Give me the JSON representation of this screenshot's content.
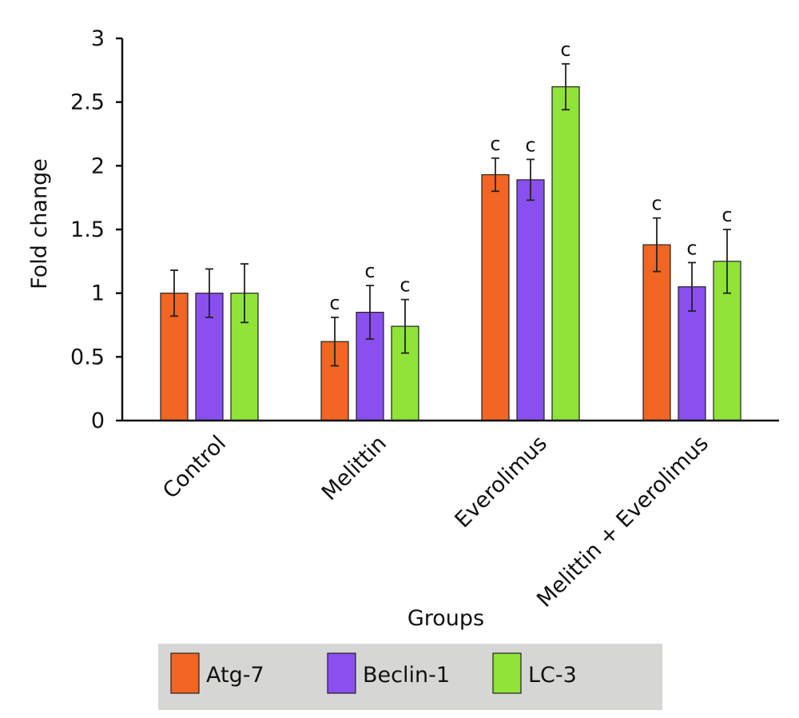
{
  "chart_data": {
    "type": "bar",
    "xlabel": "Groups",
    "ylabel": "Fold change",
    "ylim": [
      0,
      3
    ],
    "yticks": [
      "0",
      "0.5",
      "1",
      "1.5",
      "2",
      "2.5",
      "3"
    ],
    "grid": false,
    "legend_position": "bottom",
    "categories": [
      "Control",
      "Melittin",
      "Everolimus",
      "Melittin + Everolimus"
    ],
    "series": [
      {
        "name": "Atg-7",
        "color": "#F26522",
        "values": [
          1.0,
          0.62,
          1.93,
          1.38
        ],
        "errors": [
          0.18,
          0.19,
          0.13,
          0.21
        ],
        "annotations": [
          "",
          "c",
          "c",
          "c"
        ]
      },
      {
        "name": "Beclin-1",
        "color": "#8A4FEF",
        "values": [
          1.0,
          0.85,
          1.89,
          1.05
        ],
        "errors": [
          0.19,
          0.21,
          0.16,
          0.19
        ],
        "annotations": [
          "",
          "c",
          "c",
          "c"
        ]
      },
      {
        "name": "LC-3",
        "color": "#8FE339",
        "values": [
          1.0,
          0.74,
          2.62,
          1.25
        ],
        "errors": [
          0.23,
          0.21,
          0.18,
          0.25
        ],
        "annotations": [
          "",
          "c",
          "c",
          "c"
        ]
      }
    ]
  }
}
